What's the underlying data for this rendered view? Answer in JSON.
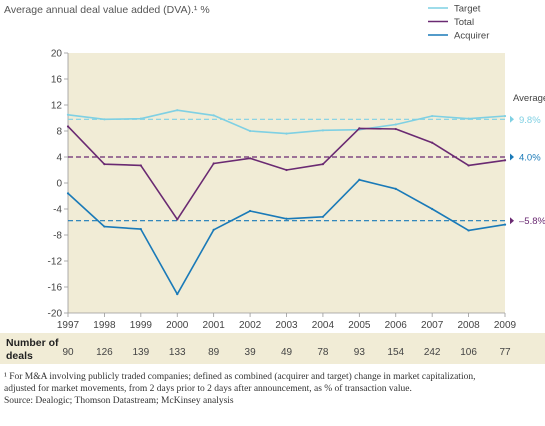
{
  "chart_data": {
    "type": "line",
    "title": "Average annual deal value added (DVA).¹ %",
    "x": [
      "1997",
      "1998",
      "1999",
      "2000",
      "2001",
      "2002",
      "2003",
      "2004",
      "2005",
      "2006",
      "2007",
      "2008",
      "2009"
    ],
    "ylim": [
      -20,
      20
    ],
    "yticks": [
      "20",
      "16",
      "12",
      "8",
      "4",
      "0",
      "-4",
      "-8",
      "-12",
      "-16",
      "-20"
    ],
    "series": [
      {
        "name": "Target",
        "color": "#7fd0e3",
        "values": [
          10.5,
          9.8,
          9.9,
          11.2,
          10.4,
          8.0,
          7.6,
          8.1,
          8.2,
          9.0,
          10.3,
          9.9,
          10.3
        ]
      },
      {
        "name": "Total",
        "color": "#6a2a72",
        "values": [
          8.7,
          2.9,
          2.7,
          -5.6,
          3.0,
          3.8,
          2.0,
          2.9,
          8.4,
          8.3,
          6.2,
          2.7,
          3.5
        ]
      },
      {
        "name": "Acquirer",
        "color": "#1a7ab8",
        "values": [
          -1.6,
          -6.7,
          -7.1,
          -17.1,
          -7.2,
          -4.3,
          -5.5,
          -5.2,
          0.5,
          -0.9,
          -4.0,
          -7.3,
          -6.4
        ]
      }
    ],
    "averages": {
      "label": "Average",
      "items": [
        {
          "series": "Target",
          "value": 9.8,
          "text": "9.8%",
          "color": "#7fd0e3"
        },
        {
          "series": "Total",
          "value": 4.0,
          "text": "4.0%",
          "color": "#1a7ab8"
        },
        {
          "series": "Acquirer",
          "value": -5.8,
          "text": "–5.8%",
          "color": "#6a2a72"
        }
      ]
    },
    "background": "#f1ecd6",
    "grid": false,
    "legend_position": "top-right"
  },
  "deals": {
    "label_line1": "Number of",
    "label_line2": "deals",
    "values": [
      "90",
      "126",
      "139",
      "133",
      "89",
      "39",
      "49",
      "78",
      "93",
      "154",
      "242",
      "106",
      "77"
    ]
  },
  "footnote": {
    "line1": "¹ For M&A involving publicly traded companies; defined as combined (acquirer and target) change in market capitalization,",
    "line2": "adjusted for market movements, from 2 days prior to 2 days after announcement, as % of transaction value.",
    "source": "Source: Dealogic; Thomson Datastream; McKinsey analysis"
  }
}
